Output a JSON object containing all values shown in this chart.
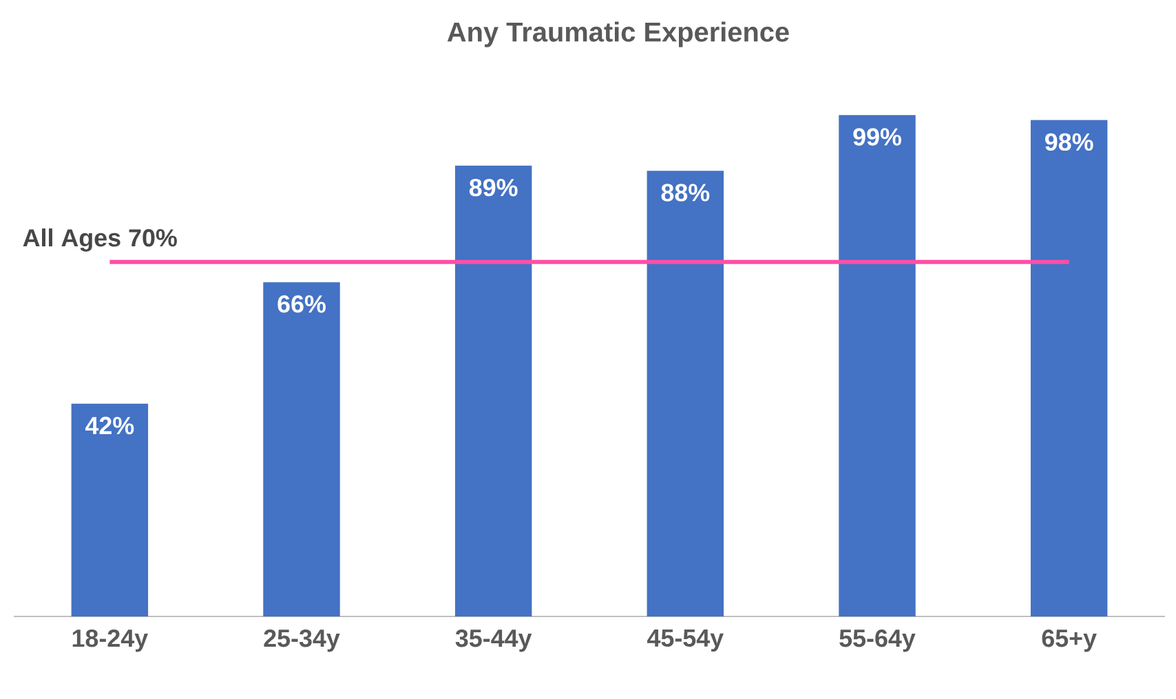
{
  "chart_data": {
    "type": "bar",
    "title": "Any Traumatic Experience",
    "categories": [
      "18-24y",
      "25-34y",
      "35-44y",
      "45-54y",
      "55-64y",
      "65+y"
    ],
    "values": [
      42,
      66,
      89,
      88,
      99,
      98
    ],
    "value_labels": [
      "42%",
      "66%",
      "89%",
      "88%",
      "99%",
      "98%"
    ],
    "color": "#4472c4",
    "ref_lines": [
      {
        "axis": "y",
        "value": 70,
        "label": "All Ages 70%",
        "color": "#ff4fa7"
      }
    ]
  }
}
